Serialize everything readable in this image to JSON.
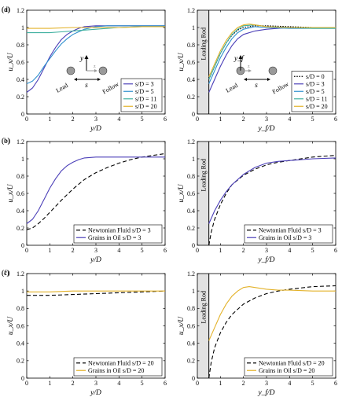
{
  "figure": {
    "panels": [
      "(a)",
      "(b)",
      "(c)",
      "(d)",
      "(e)",
      "(f)"
    ],
    "leading_rod_label": "Leading Rod"
  },
  "chart_data": [
    {
      "panel": "(a)",
      "type": "line",
      "xlabel": "y/D",
      "ylabel": "u_x/U",
      "xlim": [
        0,
        6
      ],
      "ylim": [
        0,
        1.2
      ],
      "xticks": [
        0,
        1,
        2,
        3,
        4,
        5,
        6
      ],
      "yticks": [
        0,
        0.2,
        0.4,
        0.6,
        0.8,
        1,
        1.2
      ],
      "legend_position": "bottom-right",
      "inset": {
        "labels": [
          "y",
          "s",
          "Lead",
          "Follow",
          "z"
        ]
      },
      "series": [
        {
          "name": "s/D = 3",
          "color": "#4b3fb8",
          "style": "solid",
          "x": [
            0,
            0.25,
            0.5,
            0.75,
            1,
            1.25,
            1.5,
            1.75,
            2,
            2.25,
            2.5,
            3,
            3.5,
            4,
            5,
            6
          ],
          "y": [
            0.25,
            0.3,
            0.4,
            0.53,
            0.66,
            0.77,
            0.86,
            0.92,
            0.96,
            0.99,
            1.01,
            1.02,
            1.02,
            1.02,
            1.02,
            1.02
          ]
        },
        {
          "name": "s/D = 5",
          "color": "#2e8fce",
          "style": "solid",
          "x": [
            0,
            0.25,
            0.5,
            0.75,
            1,
            1.25,
            1.5,
            1.75,
            2,
            2.25,
            2.5,
            3,
            3.5,
            4,
            5,
            6
          ],
          "y": [
            0.35,
            0.38,
            0.45,
            0.55,
            0.64,
            0.73,
            0.81,
            0.87,
            0.92,
            0.95,
            0.98,
            1.01,
            1.02,
            1.02,
            1.02,
            1.02
          ]
        },
        {
          "name": "s/D = 11",
          "color": "#3fb0a0",
          "style": "solid",
          "x": [
            0,
            0.5,
            1,
            1.5,
            2,
            2.5,
            3,
            3.5,
            4,
            5,
            6
          ],
          "y": [
            0.94,
            0.94,
            0.94,
            0.95,
            0.96,
            0.97,
            0.98,
            0.99,
            1.0,
            1.01,
            1.01
          ]
        },
        {
          "name": "s/D = 20",
          "color": "#e3b22a",
          "style": "solid",
          "x": [
            0,
            1,
            2,
            3,
            4,
            5,
            6
          ],
          "y": [
            0.99,
            0.99,
            1.0,
            1.0,
            1.0,
            1.01,
            1.01
          ]
        }
      ]
    },
    {
      "panel": "(b)",
      "type": "line",
      "xlabel": "y/D",
      "ylabel": "u_x/U",
      "xlim": [
        0,
        6
      ],
      "ylim": [
        0,
        1.2
      ],
      "xticks": [
        0,
        1,
        2,
        3,
        4,
        5,
        6
      ],
      "yticks": [
        0,
        0.2,
        0.4,
        0.6,
        0.8,
        1,
        1.2
      ],
      "legend_position": "bottom-right",
      "series": [
        {
          "name": "Newtonian Fluid s/D = 3",
          "color": "#000000",
          "style": "dashed",
          "x": [
            0,
            0.25,
            0.5,
            0.75,
            1,
            1.5,
            2,
            2.5,
            3,
            3.5,
            4,
            4.5,
            5,
            5.5,
            6
          ],
          "y": [
            0.18,
            0.2,
            0.25,
            0.31,
            0.38,
            0.52,
            0.65,
            0.76,
            0.84,
            0.9,
            0.95,
            0.99,
            1.02,
            1.04,
            1.06
          ]
        },
        {
          "name": "Grains in Oil s/D = 3",
          "color": "#4b3fb8",
          "style": "solid",
          "x": [
            0,
            0.25,
            0.5,
            0.75,
            1,
            1.25,
            1.5,
            1.75,
            2,
            2.25,
            2.5,
            3,
            4,
            5,
            6
          ],
          "y": [
            0.25,
            0.3,
            0.4,
            0.53,
            0.66,
            0.77,
            0.86,
            0.92,
            0.96,
            0.99,
            1.01,
            1.02,
            1.02,
            1.02,
            1.02
          ]
        }
      ]
    },
    {
      "panel": "(c)",
      "type": "line",
      "xlabel": "y/D",
      "ylabel": "u_x/U",
      "xlim": [
        0,
        6
      ],
      "ylim": [
        0,
        1.2
      ],
      "xticks": [
        0,
        1,
        2,
        3,
        4,
        5,
        6
      ],
      "yticks": [
        0,
        0.2,
        0.4,
        0.6,
        0.8,
        1,
        1.2
      ],
      "legend_position": "bottom-right",
      "series": [
        {
          "name": "Newtonian Fluid s/D = 20",
          "color": "#000000",
          "style": "dashed",
          "x": [
            0,
            1,
            2,
            3,
            4,
            5,
            6
          ],
          "y": [
            0.95,
            0.95,
            0.96,
            0.97,
            0.98,
            0.99,
            1.0
          ]
        },
        {
          "name": "Grains in Oil s/D = 20",
          "color": "#e3b22a",
          "style": "solid",
          "x": [
            0,
            1,
            2,
            3,
            4,
            5,
            6
          ],
          "y": [
            0.99,
            0.99,
            1.0,
            1.0,
            1.0,
            1.0,
            1.0
          ]
        }
      ]
    },
    {
      "panel": "(d)",
      "type": "line",
      "xlabel": "y_f/D",
      "ylabel": "u_x/U",
      "xlim": [
        0,
        6
      ],
      "ylim": [
        0,
        1.2
      ],
      "xticks": [
        0,
        1,
        2,
        3,
        4,
        5,
        6
      ],
      "yticks": [
        0,
        0.2,
        0.4,
        0.6,
        0.8,
        1,
        1.2
      ],
      "legend_position": "bottom-right",
      "shaded_region_x": [
        0,
        0.5
      ],
      "inset": {
        "labels": [
          "y_f",
          "s",
          "Lead",
          "Follow",
          "z"
        ]
      },
      "series": [
        {
          "name": "s/D = 0",
          "color": "#000000",
          "style": "dotted",
          "x": [
            0.5,
            0.75,
            1,
            1.25,
            1.5,
            1.75,
            2,
            2.5,
            3,
            4,
            5,
            6
          ],
          "y": [
            0.4,
            0.55,
            0.7,
            0.82,
            0.91,
            0.97,
            1.0,
            1.02,
            1.02,
            1.01,
            1.0,
            1.0
          ]
        },
        {
          "name": "s/D = 3",
          "color": "#4b3fb8",
          "style": "solid",
          "x": [
            0.5,
            0.75,
            1,
            1.25,
            1.5,
            1.75,
            2,
            2.5,
            3,
            3.5,
            4,
            5,
            6
          ],
          "y": [
            0.25,
            0.4,
            0.55,
            0.68,
            0.79,
            0.87,
            0.92,
            0.96,
            0.98,
            0.99,
            1.0,
            1.0,
            1.0
          ]
        },
        {
          "name": "s/D = 5",
          "color": "#2e8fce",
          "style": "solid",
          "x": [
            0.5,
            0.75,
            1,
            1.25,
            1.5,
            1.75,
            2,
            2.5,
            3,
            4,
            5,
            6
          ],
          "y": [
            0.35,
            0.5,
            0.65,
            0.77,
            0.87,
            0.94,
            0.98,
            1.01,
            1.0,
            0.99,
            0.99,
            0.99
          ]
        },
        {
          "name": "s/D = 11",
          "color": "#3fb0a0",
          "style": "solid",
          "x": [
            0.5,
            0.75,
            1,
            1.25,
            1.5,
            1.75,
            2,
            2.5,
            3,
            4,
            5,
            6
          ],
          "y": [
            0.4,
            0.55,
            0.7,
            0.82,
            0.92,
            0.98,
            1.02,
            1.03,
            1.01,
            1.0,
            0.99,
            0.99
          ]
        },
        {
          "name": "s/D = 20",
          "color": "#e3b22a",
          "style": "solid",
          "x": [
            0.5,
            0.75,
            1,
            1.25,
            1.5,
            1.75,
            2,
            2.25,
            2.5,
            3,
            4,
            5,
            6
          ],
          "y": [
            0.43,
            0.58,
            0.73,
            0.85,
            0.94,
            1.0,
            1.03,
            1.04,
            1.03,
            1.01,
            1.0,
            1.0,
            1.0
          ]
        }
      ]
    },
    {
      "panel": "(e)",
      "type": "line",
      "xlabel": "y_f/D",
      "ylabel": "u_x/U",
      "xlim": [
        0,
        6
      ],
      "ylim": [
        0,
        1.2
      ],
      "xticks": [
        0,
        1,
        2,
        3,
        4,
        5,
        6
      ],
      "yticks": [
        0,
        0.2,
        0.4,
        0.6,
        0.8,
        1,
        1.2
      ],
      "legend_position": "bottom-right",
      "shaded_region_x": [
        0,
        0.5
      ],
      "series": [
        {
          "name": "Newtonian Fluid s/D = 3",
          "color": "#000000",
          "style": "dashed",
          "x": [
            0.5,
            0.6,
            0.75,
            1,
            1.25,
            1.5,
            2,
            2.5,
            3,
            3.5,
            4,
            5,
            6
          ],
          "y": [
            0.0,
            0.15,
            0.3,
            0.47,
            0.6,
            0.7,
            0.81,
            0.88,
            0.93,
            0.96,
            0.98,
            1.02,
            1.04
          ]
        },
        {
          "name": "Grains in Oil s/D = 3",
          "color": "#4b3fb8",
          "style": "solid",
          "x": [
            0.5,
            0.75,
            1,
            1.25,
            1.5,
            2,
            2.5,
            3,
            3.5,
            4,
            5,
            6
          ],
          "y": [
            0.25,
            0.4,
            0.52,
            0.62,
            0.7,
            0.82,
            0.9,
            0.95,
            0.97,
            0.98,
            1.0,
            1.01
          ]
        }
      ]
    },
    {
      "panel": "(f)",
      "type": "line",
      "xlabel": "y_f/D",
      "ylabel": "u_x/U",
      "xlim": [
        0,
        6
      ],
      "ylim": [
        0,
        1.2
      ],
      "xticks": [
        0,
        1,
        2,
        3,
        4,
        5,
        6
      ],
      "yticks": [
        0,
        0.2,
        0.4,
        0.6,
        0.8,
        1,
        1.2
      ],
      "legend_position": "bottom-right",
      "shaded_region_x": [
        0,
        0.5
      ],
      "series": [
        {
          "name": "Newtonian Fluid s/D = 20",
          "color": "#000000",
          "style": "dashed",
          "x": [
            0.5,
            0.6,
            0.75,
            1,
            1.25,
            1.5,
            2,
            2.5,
            3,
            3.5,
            4,
            5,
            6
          ],
          "y": [
            0.0,
            0.18,
            0.35,
            0.52,
            0.64,
            0.73,
            0.85,
            0.92,
            0.97,
            1.0,
            1.02,
            1.05,
            1.06
          ]
        },
        {
          "name": "Grains in Oil s/D = 20",
          "color": "#e3b22a",
          "style": "solid",
          "x": [
            0.5,
            0.75,
            1,
            1.25,
            1.5,
            1.75,
            2,
            2.25,
            2.5,
            3,
            3.5,
            4,
            5,
            6
          ],
          "y": [
            0.43,
            0.58,
            0.73,
            0.85,
            0.94,
            1.0,
            1.04,
            1.05,
            1.04,
            1.02,
            1.01,
            1.01,
            1.0,
            1.0
          ]
        }
      ]
    }
  ]
}
